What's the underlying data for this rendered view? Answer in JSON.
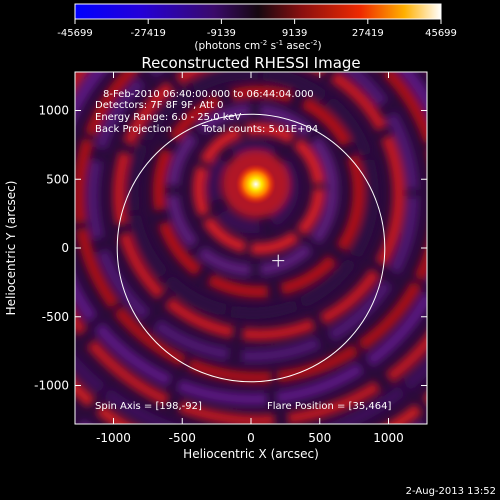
{
  "colorbar": {
    "tick_labels": [
      "-45699",
      "-27419",
      "-9139",
      "9139",
      "27419",
      "45699"
    ],
    "unit_base": "(photons cm",
    "unit_exp1": "-2",
    "unit_mid": " s",
    "unit_exp2": "-1",
    "unit_mid2": " asec",
    "unit_exp3": "-2",
    "unit_end": ")"
  },
  "image": {
    "title": "Reconstructed RHESSI Image",
    "info_lines": [
      "8-Feb-2010 06:40:00.000 to 06:44:04.000",
      "Detectors: 7F 8F 9F, Att 0",
      "Energy Range: 6.0 - 25.0 keV"
    ],
    "method": "Back Projection",
    "total_counts": "Total counts: 5.01E+04",
    "spin_axis": "Spin Axis = [198,-92]",
    "flare_position": "Flare Position = [35,464]"
  },
  "axes": {
    "xlabel": "Heliocentric X (arcsec)",
    "ylabel": "Heliocentric Y (arcsec)",
    "xlim": [
      -1280,
      1280
    ],
    "ylim": [
      -1280,
      1280
    ],
    "x_ticks": [
      -1000,
      -500,
      0,
      500,
      1000
    ],
    "y_ticks": [
      -1000,
      -500,
      0,
      500,
      1000
    ],
    "x_tick_labels": [
      "-1000",
      "-500",
      "0",
      "500",
      "1000"
    ],
    "y_tick_labels": [
      "-1000",
      "-500",
      "0",
      "500",
      "1000"
    ]
  },
  "overlays": {
    "limb_radius_arcsec": 973,
    "spin_axis_xy": [
      198,
      -92
    ],
    "flare_xy": [
      35,
      464
    ]
  },
  "timestamp": "2-Aug-2013 13:52"
}
